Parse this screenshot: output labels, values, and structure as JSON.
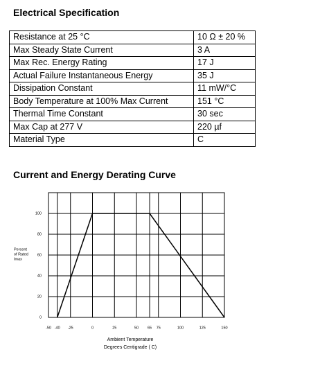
{
  "heading": "Electrical Specification",
  "table": {
    "rows": [
      [
        "Resistance at 25 °C",
        "10 Ω ± 20 %"
      ],
      [
        "Max Steady State Current",
        "3 A"
      ],
      [
        "Max Rec. Energy Rating",
        "17 J"
      ],
      [
        "Actual Failure Instantaneous Energy",
        "35 J"
      ],
      [
        "Dissipation Constant",
        "11 mW/°C"
      ],
      [
        "Body Temperature at 100% Max Current",
        "151 °C"
      ],
      [
        "Thermal Time Constant",
        "30 sec"
      ],
      [
        "Max Cap at 277 V",
        "220 µf"
      ],
      [
        "Material Type",
        "C"
      ]
    ]
  },
  "chart_data": {
    "type": "line",
    "title": "Current and Energy Derating Curve",
    "x_label": [
      "Ambient Temperature",
      "Degrees Centigrade ( C)"
    ],
    "y_label": [
      "Percent",
      "of Rated",
      "Imax"
    ],
    "x": [
      -40,
      0,
      65,
      150
    ],
    "values": [
      0,
      100,
      100,
      0
    ],
    "color": "#000000",
    "xlim": [
      -50,
      150
    ],
    "ylim": [
      0,
      120
    ],
    "xticks": [
      -50,
      -40,
      -25,
      0,
      25,
      50,
      65,
      75,
      100,
      125,
      150
    ],
    "yticks": [
      0,
      20,
      40,
      60,
      80,
      100
    ],
    "grid": true
  }
}
